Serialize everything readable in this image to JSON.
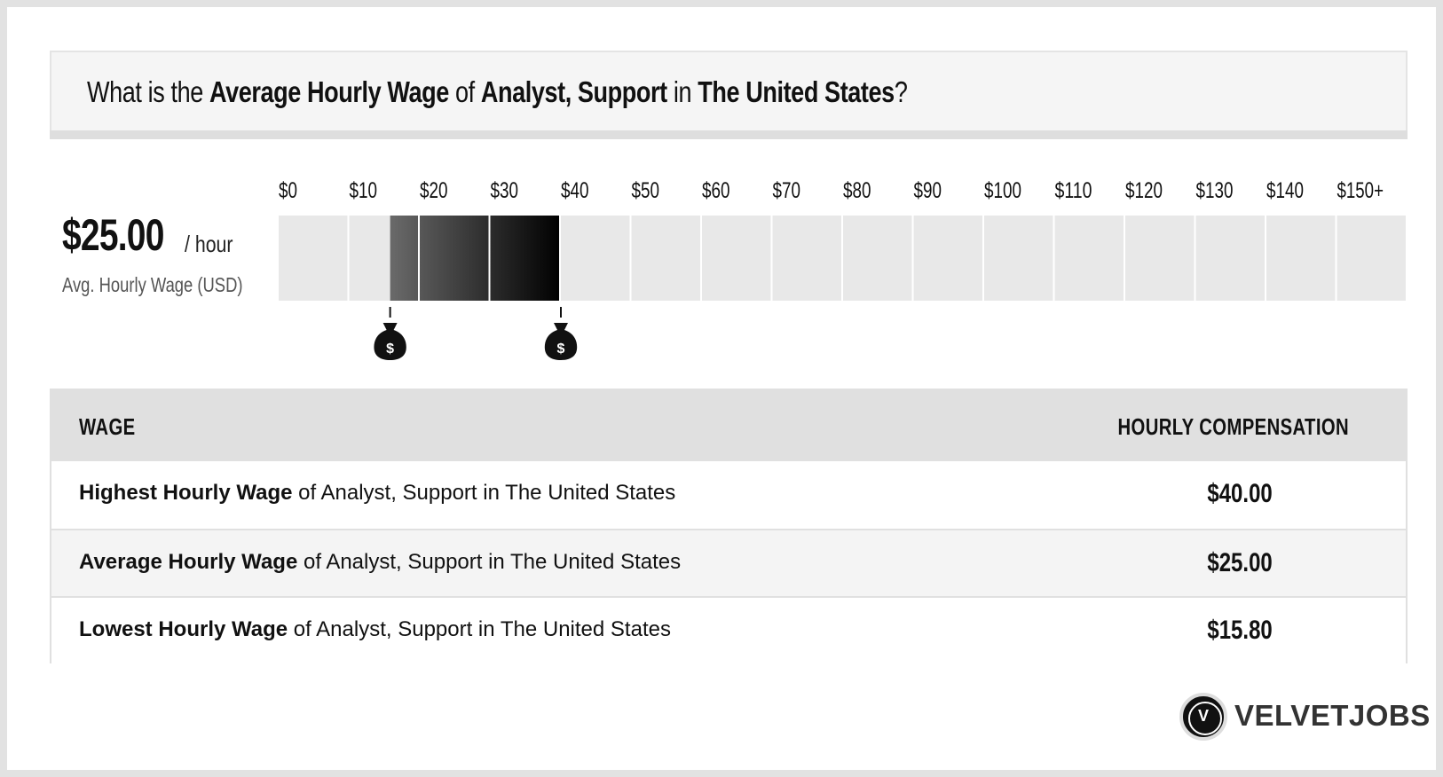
{
  "title": {
    "prefix": "What is the ",
    "metric": "Average Hourly Wage",
    "of": " of ",
    "job": "Analyst, Support",
    "in": " in ",
    "location": "The United States",
    "suffix": "?"
  },
  "average": {
    "value": "$25.00",
    "unit": "/ hour",
    "caption": "Avg. Hourly Wage (USD)"
  },
  "chart_data": {
    "type": "bar",
    "categories": [
      "$0",
      "$10",
      "$20",
      "$30",
      "$40",
      "$50",
      "$60",
      "$70",
      "$80",
      "$90",
      "$100",
      "$110",
      "$120",
      "$130",
      "$140",
      "$150+"
    ],
    "range": {
      "low": 15.8,
      "average": 25.0,
      "high": 40.0
    },
    "xlim": [
      0,
      150
    ],
    "colors": {
      "empty": "#e8e8e8",
      "fill_light": "#6a6a6a",
      "fill_dark": "#000000"
    }
  },
  "markers": [
    {
      "name": "low-marker",
      "value": 15.8,
      "icon": "money-bag-icon",
      "glyph": "$"
    },
    {
      "name": "high-marker",
      "value": 40.0,
      "icon": "money-bag-icon",
      "glyph": "$"
    }
  ],
  "table": {
    "headers": {
      "wage": "WAGE",
      "compensation": "HOURLY COMPENSATION"
    },
    "rows": [
      {
        "bold": "Highest Hourly Wage",
        "rest": " of Analyst, Support in The United States",
        "value": "$40.00"
      },
      {
        "bold": "Average Hourly Wage",
        "rest": " of Analyst, Support in The United States",
        "value": "$25.00"
      },
      {
        "bold": "Lowest Hourly Wage",
        "rest": " of Analyst, Support in The United States",
        "value": "$15.80"
      }
    ]
  },
  "logo": {
    "text": "VELVETJOBS",
    "letter": "V"
  }
}
